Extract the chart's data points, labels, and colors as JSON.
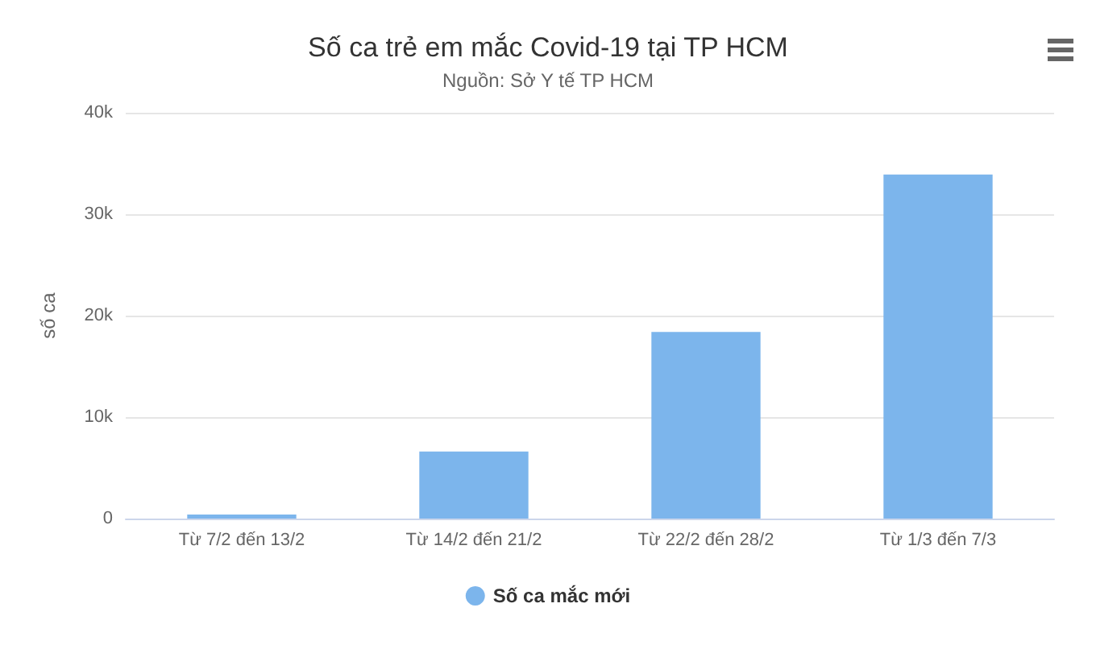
{
  "chart_data": {
    "type": "bar",
    "title": "Số ca trẻ em mắc Covid-19 tại TP HCM",
    "subtitle": "Nguồn: Sở Y tế TP HCM",
    "ylabel": "số ca",
    "categories": [
      "Từ 7/2 đến 13/2",
      "Từ 14/2 đến 21/2",
      "Từ 22/2 đến 28/2",
      "Từ 1/3 đến 7/3"
    ],
    "series": [
      {
        "name": "Số ca mắc mới",
        "color": "#7cb5ec",
        "values": [
          400,
          6600,
          18400,
          33900
        ]
      }
    ],
    "ylim": [
      0,
      40000
    ],
    "yticks": [
      {
        "value": 0,
        "label": "0"
      },
      {
        "value": 10000,
        "label": "10k"
      },
      {
        "value": 20000,
        "label": "20k"
      },
      {
        "value": 30000,
        "label": "30k"
      },
      {
        "value": 40000,
        "label": "40k"
      }
    ],
    "grid": "y",
    "legend": "bottom"
  }
}
